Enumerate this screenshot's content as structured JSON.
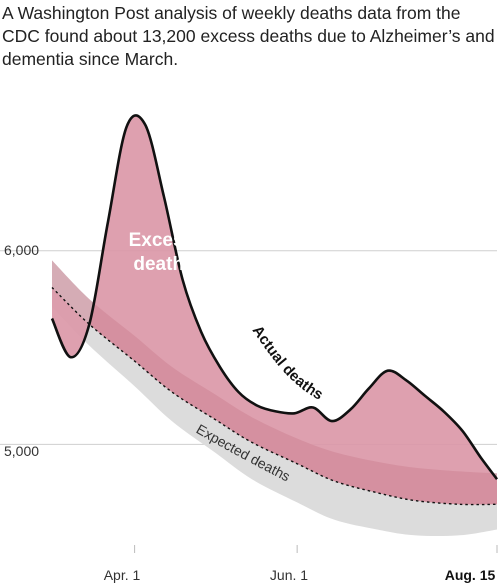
{
  "headline": "A Washington Post analysis of weekly deaths data from the CDC found about 13,200 excess deaths due to Alzheimer’s and dementia since March.",
  "colors": {
    "excess_fill": "#db98a8",
    "excess_dark": "#cf8596",
    "expected_band": "#dcdcdc",
    "actual_line": "#111111",
    "gridline": "#cfcfcf"
  },
  "chart_data": {
    "type": "area",
    "title": "",
    "xlabel": "",
    "ylabel": "",
    "x_ticks": [
      "Apr. 1",
      "Jun. 1",
      "Aug. 15"
    ],
    "x_tick_bold": [
      false,
      false,
      true
    ],
    "y_ticks": [
      "6,000",
      "5,000"
    ],
    "ylim": [
      4480,
      6830
    ],
    "x_range": [
      "Mar. 1",
      "Aug. 15"
    ],
    "gridlines": true,
    "series": [
      {
        "name": "Actual deaths",
        "x": [
          "Mar. 1",
          "Mar. 8",
          "Mar. 15",
          "Mar. 22",
          "Mar. 29",
          "Apr. 5",
          "Apr. 12",
          "Apr. 19",
          "Apr. 26",
          "May 3",
          "May 10",
          "May 17",
          "May 24",
          "May 31",
          "Jun. 7",
          "Jun. 14",
          "Jun. 21",
          "Jun. 28",
          "Jul. 5",
          "Jul. 12",
          "Jul. 19",
          "Jul. 26",
          "Aug. 2",
          "Aug. 9",
          "Aug. 15"
        ],
        "values": [
          5650,
          5450,
          5620,
          6150,
          6640,
          6650,
          6280,
          5850,
          5580,
          5400,
          5270,
          5200,
          5170,
          5160,
          5190,
          5120,
          5180,
          5290,
          5380,
          5330,
          5250,
          5170,
          5070,
          4930,
          4820
        ]
      },
      {
        "name": "Expected deaths",
        "x": [
          "Mar. 1",
          "Mar. 15",
          "Apr. 1",
          "Apr. 15",
          "May 1",
          "May 15",
          "Jun. 1",
          "Jun. 15",
          "Jul. 1",
          "Jul. 15",
          "Aug. 1",
          "Aug. 15"
        ],
        "values": [
          5810,
          5620,
          5430,
          5270,
          5130,
          5010,
          4900,
          4810,
          4750,
          4710,
          4690,
          4690
        ],
        "range_low": [
          5710,
          5510,
          5300,
          5120,
          4960,
          4820,
          4700,
          4610,
          4560,
          4530,
          4530,
          4560
        ],
        "range_high": [
          5950,
          5750,
          5560,
          5400,
          5260,
          5140,
          5030,
          4960,
          4910,
          4880,
          4860,
          4850
        ]
      }
    ],
    "annotations": [
      {
        "label": "Excess deaths",
        "lines": [
          "Excess",
          "deaths"
        ]
      },
      {
        "label": "Actual deaths"
      },
      {
        "label": "Expected deaths"
      }
    ]
  }
}
